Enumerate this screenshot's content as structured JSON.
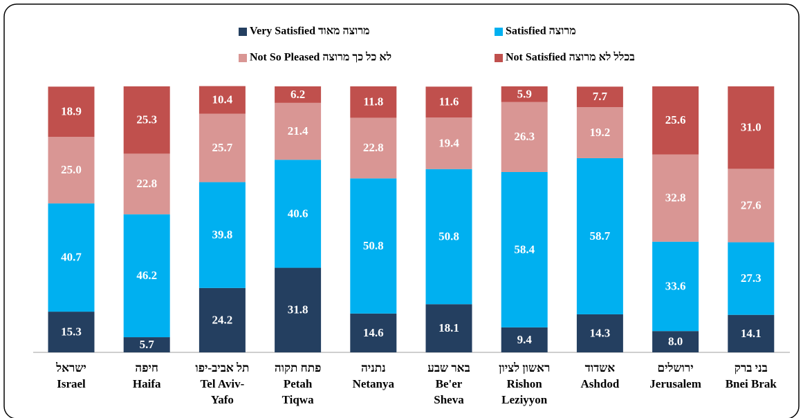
{
  "chart_data": {
    "type": "stacked_bar",
    "categories": [
      [
        "ישראל",
        "Israel"
      ],
      [
        "חיפה",
        "Haifa"
      ],
      [
        "תל אביב-יפו",
        "Tel Aviv-",
        "Yafo"
      ],
      [
        "פתח תקוה",
        "Petah",
        "Tiqwa"
      ],
      [
        "נתניה",
        "Netanya"
      ],
      [
        "באר שבע",
        "Be'er",
        "Sheva"
      ],
      [
        "ראשון לציון",
        "Rishon",
        "Leziyyon"
      ],
      [
        "אשדוד",
        "Ashdod"
      ],
      [
        "ירושלים",
        "Jerusalem"
      ],
      [
        "בני ברק",
        "Bnei Brak"
      ]
    ],
    "ylim": [
      0,
      100
    ],
    "series": [
      {
        "name": "Very Satisfied מרוצה מאוד",
        "color": "#243f60",
        "values": [
          15.3,
          5.7,
          24.2,
          31.8,
          14.6,
          18.1,
          9.4,
          14.3,
          8.0,
          14.1
        ],
        "value_labels": [
          "15.3",
          "5.7",
          "24.2",
          "31.8",
          "14.6",
          "18.1",
          "9.4",
          "14.3",
          "8.0",
          "14.1"
        ]
      },
      {
        "name": "Satisfied מרוצה",
        "color": "#00b0f0",
        "values": [
          40.7,
          46.2,
          39.8,
          40.6,
          50.8,
          50.8,
          58.4,
          58.7,
          33.6,
          27.3
        ],
        "value_labels": [
          "40.7",
          "46.2",
          "39.8",
          "40.6",
          "50.8",
          "50.8",
          "58.4",
          "58.7",
          "33.6",
          "27.3"
        ]
      },
      {
        "name": "Not So Pleased לא כל כך מרוצה",
        "color": "#d99694",
        "values": [
          25.0,
          22.8,
          25.7,
          21.4,
          22.8,
          19.4,
          26.3,
          19.2,
          32.8,
          27.6
        ],
        "value_labels": [
          "25.0",
          "22.8",
          "25.7",
          "21.4",
          "22.8",
          "19.4",
          "26.3",
          "19.2",
          "32.8",
          "27.6"
        ]
      },
      {
        "name": "Not Satisfied בכלל לא מרוצה",
        "color": "#c0504d",
        "values": [
          18.9,
          25.3,
          10.4,
          6.2,
          11.8,
          11.6,
          5.9,
          7.7,
          25.6,
          31.0
        ],
        "value_labels": [
          "18.9",
          "25.3",
          "10.4",
          "6.2",
          "11.8",
          "11.6",
          "5.9",
          "7.7",
          "25.6",
          "31.0"
        ]
      }
    ]
  }
}
